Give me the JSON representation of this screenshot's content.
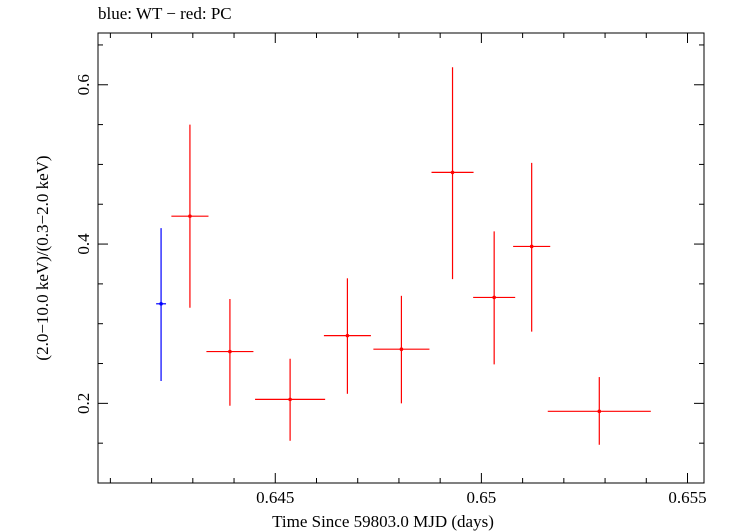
{
  "chart_data": {
    "type": "scatter",
    "title": "blue: WT − red: PC",
    "xlabel": "Time Since 59803.0 MJD (days)",
    "ylabel": "(2.0−10.0 keV)/(0.3−2.0 keV)",
    "xlim": [
      0.6407,
      0.6554
    ],
    "ylim": [
      0.1,
      0.665
    ],
    "x_ticks": [
      0.645,
      0.65,
      0.655
    ],
    "x_tick_labels": [
      "0.645",
      "0.65",
      "0.655"
    ],
    "y_ticks": [
      0.2,
      0.4,
      0.6
    ],
    "y_tick_labels": [
      "0.2",
      "0.4",
      "0.6"
    ],
    "series": [
      {
        "name": "WT",
        "color": "#0000ff",
        "points": [
          {
            "x": 0.64223,
            "y": 0.325,
            "xerr": 0.00012,
            "ylo": 0.228,
            "yhi": 0.42
          }
        ]
      },
      {
        "name": "PC",
        "color": "#ff0000",
        "points": [
          {
            "x": 0.64293,
            "y": 0.435,
            "xerr": 0.00045,
            "ylo": 0.32,
            "yhi": 0.55
          },
          {
            "x": 0.6439,
            "y": 0.265,
            "xerr": 0.00057,
            "ylo": 0.197,
            "yhi": 0.331
          },
          {
            "x": 0.64536,
            "y": 0.205,
            "xerr": 0.00085,
            "ylo": 0.153,
            "yhi": 0.256
          },
          {
            "x": 0.64675,
            "y": 0.285,
            "xerr": 0.00057,
            "ylo": 0.212,
            "yhi": 0.357
          },
          {
            "x": 0.64806,
            "y": 0.268,
            "xerr": 0.00068,
            "ylo": 0.2,
            "yhi": 0.335
          },
          {
            "x": 0.6493,
            "y": 0.49,
            "xerr": 0.00051,
            "ylo": 0.356,
            "yhi": 0.622
          },
          {
            "x": 0.65031,
            "y": 0.333,
            "xerr": 0.00051,
            "ylo": 0.249,
            "yhi": 0.416
          },
          {
            "x": 0.65122,
            "y": 0.397,
            "xerr": 0.00045,
            "ylo": 0.29,
            "yhi": 0.502
          },
          {
            "x": 0.65286,
            "y": 0.19,
            "xerr": 0.00125,
            "ylo": 0.148,
            "yhi": 0.233
          }
        ]
      }
    ]
  }
}
